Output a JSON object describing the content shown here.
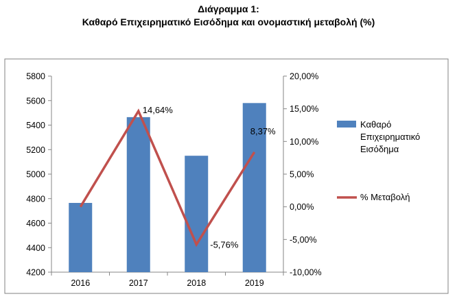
{
  "title": "Διάγραμμα 1:",
  "subtitle": "Καθαρό Επιχειρηματικό Εισόδημα και ονομαστική μεταβολή (%)",
  "chart_data": {
    "type": "bar",
    "categories": [
      "2016",
      "2017",
      "2018",
      "2019"
    ],
    "series": [
      {
        "name": "Καθαρό Επιχειρηματικό Εισόδημα",
        "legend_lines": [
          "Καθαρό",
          "Επιχειρηματικό",
          "Εισόδημα"
        ],
        "type": "bar",
        "axis": "left",
        "color": "#4F81BD",
        "values": [
          4765,
          5465,
          5150,
          5580
        ]
      },
      {
        "name": "% Μεταβολή",
        "legend_lines": [
          "% Μεταβολή"
        ],
        "type": "line",
        "axis": "right",
        "color": "#C0504D",
        "values": [
          0.0,
          14.64,
          -5.76,
          8.37
        ],
        "data_labels": [
          "",
          "14,64%",
          "-5,76%",
          "8,37%"
        ]
      }
    ],
    "y_left": {
      "lim": [
        4200,
        5800
      ],
      "ticks": [
        4200,
        4400,
        4600,
        4800,
        5000,
        5200,
        5400,
        5600,
        5800
      ],
      "tick_labels": [
        "4200",
        "4400",
        "4600",
        "4800",
        "5000",
        "5200",
        "5400",
        "5600",
        "5800"
      ]
    },
    "y_right": {
      "lim": [
        -10,
        20
      ],
      "ticks": [
        -10,
        -5,
        0,
        5,
        10,
        15,
        20
      ],
      "tick_labels": [
        "-10,00%",
        "-5,00%",
        "0,00%",
        "5,00%",
        "10,00%",
        "15,00%",
        "20,00%"
      ]
    },
    "grid": false,
    "legend": "right",
    "frame_color": "#808080"
  }
}
